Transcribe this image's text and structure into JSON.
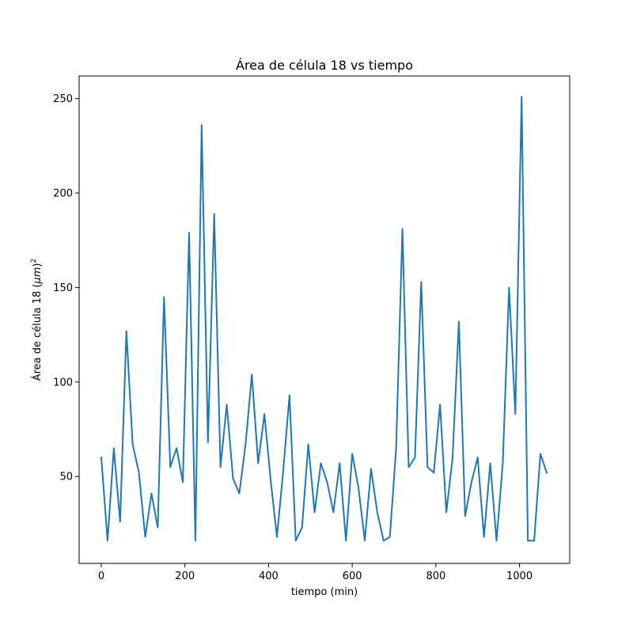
{
  "chart_data": {
    "type": "line",
    "title": "Área de célula 18 vs tiempo",
    "xlabel": "tiempo (min)",
    "ylabel": "Área de célula 18 (μm)²",
    "ylabel_main": "Área de célula 18 (",
    "ylabel_mu": "μm",
    "ylabel_close": ")",
    "ylabel_exp": "2",
    "xlim": [
      -53,
      1120
    ],
    "ylim": [
      4,
      262
    ],
    "xticks": [
      0,
      200,
      400,
      600,
      800,
      1000
    ],
    "yticks": [
      50,
      100,
      150,
      200,
      250
    ],
    "grid": false,
    "color": "#1f77b4",
    "series": [
      {
        "x": [
          0,
          15,
          30,
          45,
          60,
          75,
          90,
          105,
          120,
          135,
          150,
          165,
          180,
          195,
          210,
          225,
          240,
          255,
          270,
          285,
          300,
          315,
          330,
          345,
          360,
          375,
          390,
          405,
          420,
          435,
          450,
          465,
          480,
          495,
          510,
          525,
          540,
          555,
          570,
          585,
          600,
          615,
          630,
          645,
          660,
          675,
          690,
          705,
          720,
          735,
          750,
          765,
          780,
          795,
          810,
          825,
          840,
          855,
          870,
          885,
          900,
          915,
          930,
          945,
          960,
          975,
          990,
          1005,
          1020,
          1035,
          1050,
          1065
        ],
        "y": [
          60,
          16,
          65,
          26,
          127,
          67,
          52,
          18,
          41,
          23,
          145,
          55,
          65,
          47,
          179,
          16,
          236,
          68,
          189,
          55,
          88,
          49,
          41,
          67,
          104,
          57,
          83,
          48,
          18,
          53,
          93,
          16,
          23,
          67,
          31,
          57,
          47,
          31,
          57,
          16,
          62,
          44,
          16,
          54,
          31,
          16,
          18,
          65,
          181,
          55,
          60,
          153,
          55,
          52,
          88,
          31,
          60,
          132,
          29,
          47,
          60,
          18,
          57,
          16,
          57,
          150,
          83,
          251,
          16,
          16,
          62,
          52
        ]
      }
    ]
  }
}
